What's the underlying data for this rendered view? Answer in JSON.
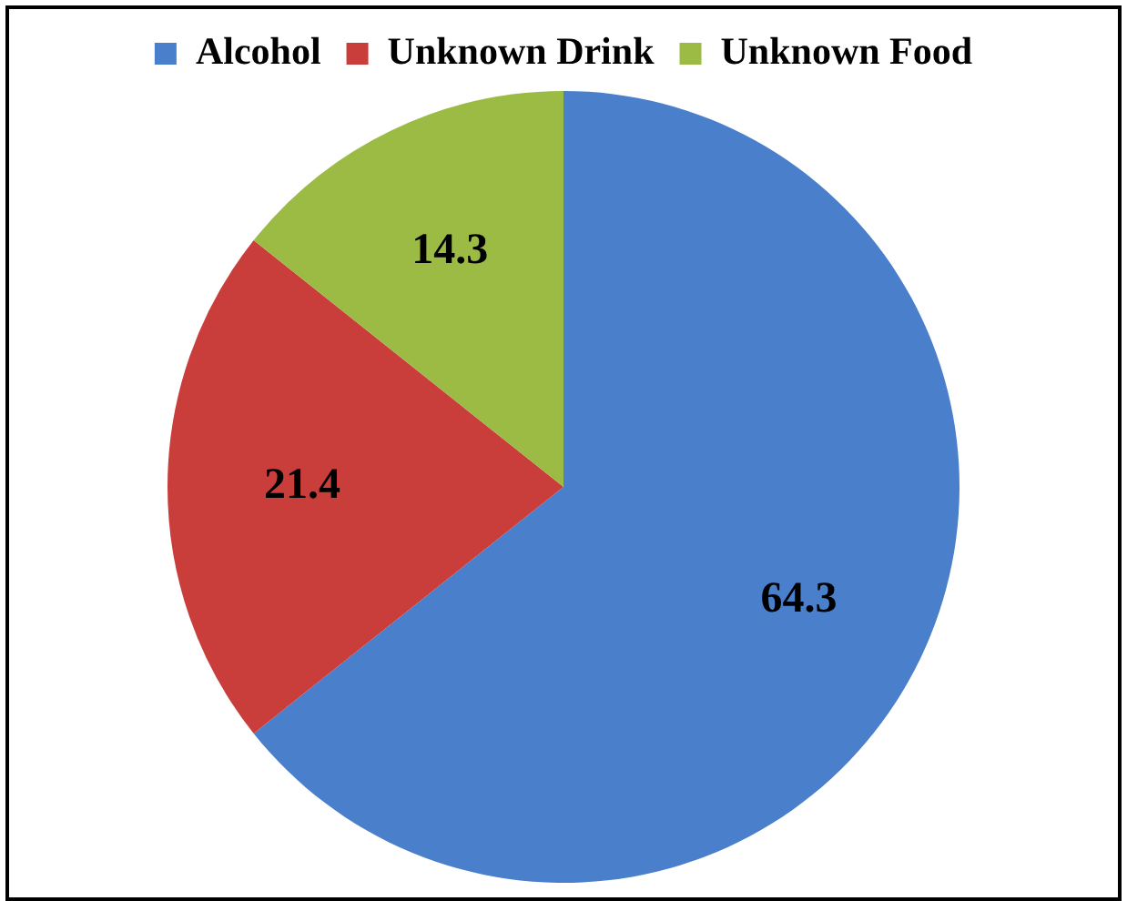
{
  "chart_data": {
    "type": "pie",
    "categories": [
      "Alcohol",
      "Unknown Drink",
      "Unknown Food"
    ],
    "values": [
      64.3,
      21.4,
      14.3
    ],
    "colors": [
      "#4a7fcc",
      "#c93d3b",
      "#9cbb45"
    ],
    "data_labels": true,
    "legend": "top"
  }
}
